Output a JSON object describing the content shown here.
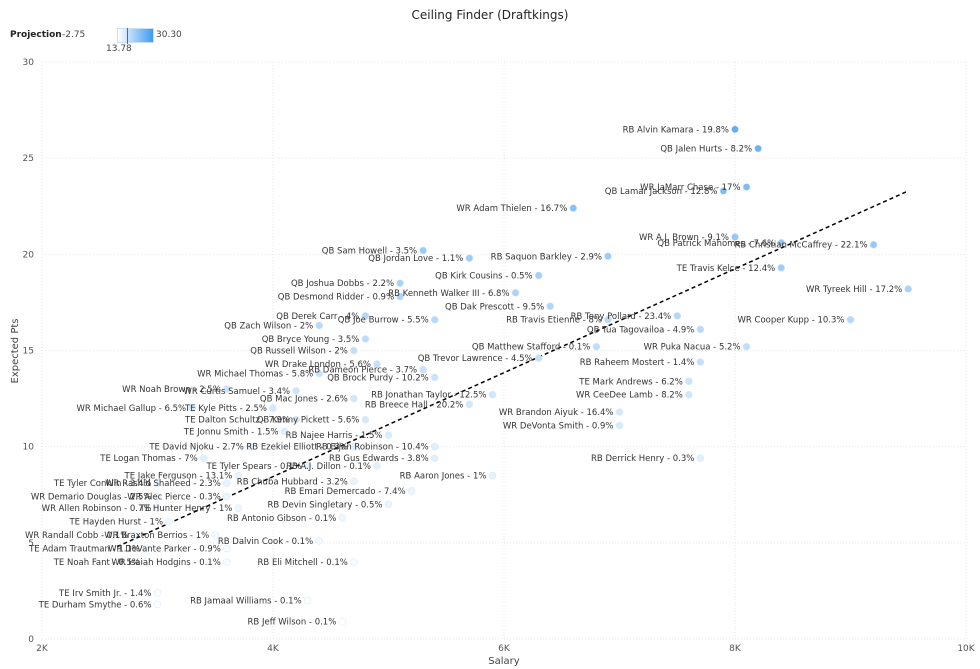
{
  "chart_data": {
    "type": "scatter",
    "title": "Ceiling Finder (Draftkings)",
    "xlabel": "Salary",
    "ylabel": "Expected Pts",
    "xlim": [
      2000,
      10000
    ],
    "ylim": [
      0,
      30
    ],
    "x_ticks": [
      "2K",
      "4K",
      "6K",
      "8K",
      "10K"
    ],
    "y_ticks": [
      "0",
      "5",
      "10",
      "15",
      "20",
      "25",
      "30"
    ],
    "grid": true,
    "legend": {
      "label": "Projection",
      "min_label": "-2.75",
      "max_label": "30.30",
      "marker_label": "13.78",
      "colors": [
        "#ffffff",
        "#3d9bf2"
      ],
      "placement": "top-left"
    },
    "trendline": {
      "style": "dashed",
      "color": "#000000",
      "start": {
        "x": 2650,
        "y": 4.8
      },
      "end": {
        "x": 9500,
        "y": 23.3
      }
    },
    "points": [
      {
        "label": "RB Alvin Kamara - 19.8%",
        "x": 8000,
        "y": 26.5
      },
      {
        "label": "QB Jalen Hurts - 8.2%",
        "x": 8200,
        "y": 25.5
      },
      {
        "label": "WR JaMarr Chase - 17%",
        "x": 8100,
        "y": 23.5
      },
      {
        "label": "QB Lamar Jackson - 12.8%",
        "x": 7900,
        "y": 23.3
      },
      {
        "label": "WR Adam Thielen - 16.7%",
        "x": 6600,
        "y": 22.4
      },
      {
        "label": "WR A.J. Brown - 9.1%",
        "x": 8000,
        "y": 20.9
      },
      {
        "label": "RB Christian McCaffrey - 22.1%",
        "x": 9200,
        "y": 20.5
      },
      {
        "label": "QB Patrick Mahomes - 7.6%",
        "x": 8400,
        "y": 20.6
      },
      {
        "label": "QB Sam Howell - 3.5%",
        "x": 5300,
        "y": 20.2
      },
      {
        "label": "QB Jordan Love - 1.1%",
        "x": 5700,
        "y": 19.8
      },
      {
        "label": "RB Saquon Barkley - 2.9%",
        "x": 6900,
        "y": 19.9
      },
      {
        "label": "QB Kirk Cousins - 0.5%",
        "x": 6300,
        "y": 18.9
      },
      {
        "label": "TE Travis Kelce - 12.4%",
        "x": 8400,
        "y": 19.3
      },
      {
        "label": "QB Joshua Dobbs - 2.2%",
        "x": 5100,
        "y": 18.5
      },
      {
        "label": "RB Kenneth Walker III - 6.8%",
        "x": 6100,
        "y": 18.0
      },
      {
        "label": "WR Tyreek Hill - 17.2%",
        "x": 9500,
        "y": 18.2
      },
      {
        "label": "QB Desmond Ridder - 0.9%",
        "x": 5100,
        "y": 17.8
      },
      {
        "label": "QB Dak Prescott - 9.5%",
        "x": 6400,
        "y": 17.3
      },
      {
        "label": "RB Tony Pollard - 23.4%",
        "x": 7500,
        "y": 16.8
      },
      {
        "label": "QB Derek Carr - 4%",
        "x": 4800,
        "y": 16.8
      },
      {
        "label": "QB Joe Burrow - 5.5%",
        "x": 5400,
        "y": 16.6
      },
      {
        "label": "RB Travis Etienne - 8%",
        "x": 6900,
        "y": 16.6
      },
      {
        "label": "QB Tua Tagovailoa - 4.9%",
        "x": 7700,
        "y": 16.1
      },
      {
        "label": "QB Zach Wilson - 2%",
        "x": 4400,
        "y": 16.3
      },
      {
        "label": "WR Cooper Kupp - 10.3%",
        "x": 9000,
        "y": 16.6
      },
      {
        "label": "QB Bryce Young - 3.5%",
        "x": 4800,
        "y": 15.6
      },
      {
        "label": "QB Matthew Stafford - 0.1%",
        "x": 6800,
        "y": 15.2
      },
      {
        "label": "WR Puka Nacua - 5.2%",
        "x": 8100,
        "y": 15.2
      },
      {
        "label": "QB Russell Wilson - 2%",
        "x": 4700,
        "y": 15.0
      },
      {
        "label": "QB Trevor Lawrence - 4.5%",
        "x": 6300,
        "y": 14.6
      },
      {
        "label": "RB Raheem Mostert - 1.4%",
        "x": 7700,
        "y": 14.4
      },
      {
        "label": "WR Drake London - 5.6%",
        "x": 4900,
        "y": 14.3
      },
      {
        "label": "RB Dameon Pierce - 3.7%",
        "x": 5300,
        "y": 14.0
      },
      {
        "label": "WR Michael Thomas - 5.8%",
        "x": 4400,
        "y": 13.8
      },
      {
        "label": "QB Brock Purdy - 10.2%",
        "x": 5400,
        "y": 13.6
      },
      {
        "label": "TE Mark Andrews - 6.2%",
        "x": 7600,
        "y": 13.4
      },
      {
        "label": "WR Noah Brown - 2.5%",
        "x": 3600,
        "y": 13.0
      },
      {
        "label": "WR Curtis Samuel - 3.4%",
        "x": 4200,
        "y": 12.9
      },
      {
        "label": "RB Jonathan Taylor - 12.5%",
        "x": 5900,
        "y": 12.7
      },
      {
        "label": "WR CeeDee Lamb - 8.2%",
        "x": 7600,
        "y": 12.7
      },
      {
        "label": "QB Mac Jones - 2.6%",
        "x": 4700,
        "y": 12.5
      },
      {
        "label": "TE Kyle Pitts - 2.5%",
        "x": 4000,
        "y": 12.0
      },
      {
        "label": "WR Michael Gallup - 6.5%",
        "x": 3300,
        "y": 12.0
      },
      {
        "label": "RB Breece Hall - 20.2%",
        "x": 5700,
        "y": 12.2
      },
      {
        "label": "WR Brandon Aiyuk - 16.4%",
        "x": 7000,
        "y": 11.8
      },
      {
        "label": "TE Dalton Schultz - 7.9%",
        "x": 4200,
        "y": 11.4
      },
      {
        "label": "QB Kenny Pickett - 5.6%",
        "x": 4800,
        "y": 11.4
      },
      {
        "label": "WR DeVonta Smith - 0.9%",
        "x": 7000,
        "y": 11.1
      },
      {
        "label": "TE Jonnu Smith - 1.5%",
        "x": 4100,
        "y": 10.8
      },
      {
        "label": "RB Najee Harris - 1.5%",
        "x": 5000,
        "y": 10.6
      },
      {
        "label": "RB Bijan Robinson - 10.4%",
        "x": 5400,
        "y": 10.0
      },
      {
        "label": "TE David Njoku - 2.7%",
        "x": 3800,
        "y": 10.0
      },
      {
        "label": "RB Ezekiel Elliott - 0.3%",
        "x": 4700,
        "y": 10.0
      },
      {
        "label": "TE Logan Thomas - 7%",
        "x": 3400,
        "y": 9.4
      },
      {
        "label": "RB Gus Edwards - 3.8%",
        "x": 5400,
        "y": 9.4
      },
      {
        "label": "RB Derrick Henry - 0.3%",
        "x": 7700,
        "y": 9.4
      },
      {
        "label": "TE Tyler Spears - 0.1%",
        "x": 4300,
        "y": 9.0
      },
      {
        "label": "RB A.J. Dillon - 0.1%",
        "x": 4900,
        "y": 9.0
      },
      {
        "label": "TE Jake Ferguson - 13.1%",
        "x": 3700,
        "y": 8.5
      },
      {
        "label": "RB Aaron Jones - 1%",
        "x": 5900,
        "y": 8.5
      },
      {
        "label": "RB Chuba Hubbard - 3.2%",
        "x": 4700,
        "y": 8.2
      },
      {
        "label": "TE Tyler Conklin - 3.4%",
        "x": 3000,
        "y": 8.1
      },
      {
        "label": "WR Rashid Shaheed - 2.3%",
        "x": 3600,
        "y": 8.1
      },
      {
        "label": "RB Emari Demercado - 7.4%",
        "x": 5200,
        "y": 7.7
      },
      {
        "label": "WR Demario Douglas - 2.5%",
        "x": 3000,
        "y": 7.4
      },
      {
        "label": "WR Alec Pierce - 0.3%",
        "x": 3600,
        "y": 7.4
      },
      {
        "label": "RB Devin Singletary - 0.5%",
        "x": 5000,
        "y": 7.0
      },
      {
        "label": "WR Allen Robinson - 0.7%",
        "x": 3000,
        "y": 6.8
      },
      {
        "label": "TE Hunter Henry - 1%",
        "x": 3700,
        "y": 6.8
      },
      {
        "label": "RB Antonio Gibson - 0.1%",
        "x": 4600,
        "y": 6.3
      },
      {
        "label": "TE Hayden Hurst - 1%",
        "x": 3100,
        "y": 6.1
      },
      {
        "label": "WR Randall Cobb - 0.1%",
        "x": 2800,
        "y": 5.4
      },
      {
        "label": "WR Braxton Berrios - 1%",
        "x": 3500,
        "y": 5.4
      },
      {
        "label": "RB Dalvin Cook - 0.1%",
        "x": 4400,
        "y": 5.1
      },
      {
        "label": "TE Adam Trautman - 1.1%",
        "x": 2900,
        "y": 4.7
      },
      {
        "label": "WR DeVante Parker - 0.9%",
        "x": 3600,
        "y": 4.7
      },
      {
        "label": "TE Noah Fant - 0.5%",
        "x": 2900,
        "y": 4.0
      },
      {
        "label": "WR Isaiah Hodgins - 0.1%",
        "x": 3600,
        "y": 4.0
      },
      {
        "label": "RB Eli Mitchell - 0.1%",
        "x": 4700,
        "y": 4.0
      },
      {
        "label": "TE Irv Smith Jr. - 1.4%",
        "x": 3000,
        "y": 2.4
      },
      {
        "label": "TE Durham Smythe - 0.6%",
        "x": 3000,
        "y": 1.8
      },
      {
        "label": "RB Jamaal Williams - 0.1%",
        "x": 4300,
        "y": 2.0
      },
      {
        "label": "RB Jeff Wilson - 0.1%",
        "x": 4600,
        "y": 0.9
      }
    ]
  },
  "colors": {
    "low": "#ffffff",
    "high": "#3d9bf2",
    "grid": "#e6e6e6",
    "text": "#333333"
  }
}
